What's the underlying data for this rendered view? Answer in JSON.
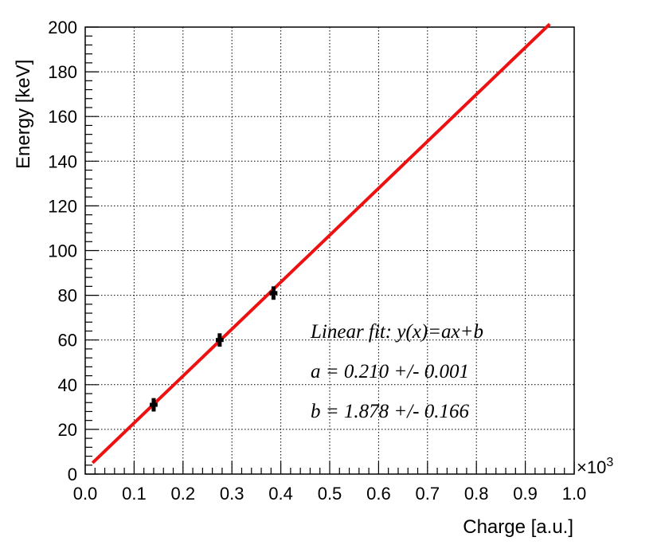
{
  "chart_data": {
    "type": "scatter",
    "xlabel": "Charge [a.u.]",
    "ylabel": "Energy [keV]",
    "x_multiplier_label": "×10",
    "x_multiplier_exponent": "3",
    "xlim": [
      0.0,
      1.0
    ],
    "ylim": [
      0,
      200
    ],
    "x_ticks": [
      "0.0",
      "0.1",
      "0.2",
      "0.3",
      "0.4",
      "0.5",
      "0.6",
      "0.7",
      "0.8",
      "0.9",
      "1.0"
    ],
    "y_ticks": [
      "0",
      "20",
      "40",
      "60",
      "80",
      "100",
      "120",
      "140",
      "160",
      "180",
      "200"
    ],
    "grid": true,
    "series": [
      {
        "points": [
          {
            "x": 0.14,
            "y": 31,
            "xerr": 0.008,
            "yerr": 3
          },
          {
            "x": 0.275,
            "y": 60,
            "xerr": 0.008,
            "yerr": 3
          },
          {
            "x": 0.385,
            "y": 81,
            "xerr": 0.008,
            "yerr": 3
          }
        ],
        "color": "#000000"
      }
    ],
    "fit": {
      "slope": 0.21,
      "intercept": 1.878,
      "x_range": [
        0.015,
        0.95
      ],
      "color": "#ee1111"
    },
    "annotations": [
      "Linear fit: y(x)=ax+b",
      "a = 0.210 +/- 0.001",
      "b = 1.878 +/- 0.166"
    ]
  }
}
